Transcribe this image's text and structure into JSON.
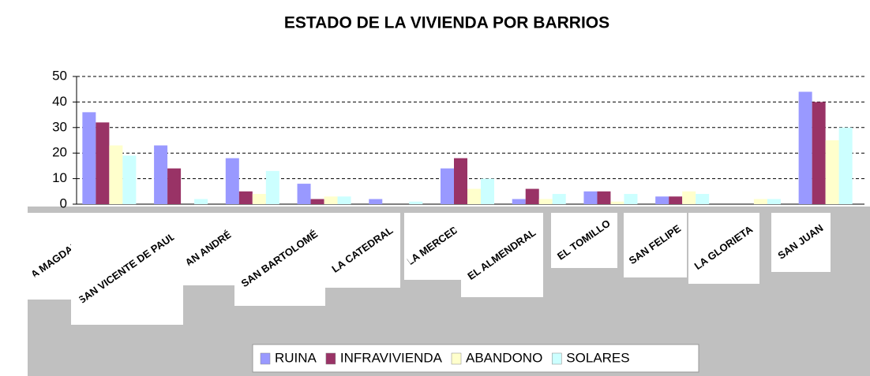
{
  "chart_data": {
    "type": "bar",
    "title": "ESTADO DE LA VIVIENDA POR BARRIOS",
    "categories": [
      "LA MAGDALENA",
      "SAN VICENTE DE PAUL",
      "SAN ANDRÉS",
      "SAN BARTOLOMÉ",
      "LA CATEDRAL",
      "LA MERCED",
      "EL ALMENDRAL",
      "EL TOMILLO",
      "SAN FELIPE",
      "LA GLORIETA",
      "SAN JUAN"
    ],
    "series": [
      {
        "name": "RUINA",
        "color": "#9999ff",
        "values": [
          36,
          23,
          18,
          8,
          2,
          14,
          2,
          5,
          3,
          0,
          44
        ]
      },
      {
        "name": "INFRAVIVIENDA",
        "color": "#993366",
        "values": [
          32,
          14,
          5,
          2,
          0,
          18,
          6,
          5,
          3,
          0,
          40
        ]
      },
      {
        "name": "ABANDONO",
        "color": "#ffffcc",
        "values": [
          23,
          0,
          4,
          3,
          0,
          6,
          2,
          1,
          5,
          2,
          25
        ]
      },
      {
        "name": "SOLARES",
        "color": "#ccffff",
        "values": [
          19,
          2,
          13,
          3,
          1,
          10,
          4,
          4,
          4,
          2,
          30
        ]
      }
    ],
    "ylim": [
      0,
      50
    ],
    "yticks": [
      0,
      10,
      20,
      30,
      40,
      50
    ],
    "grid": true,
    "legend": "bottom"
  }
}
